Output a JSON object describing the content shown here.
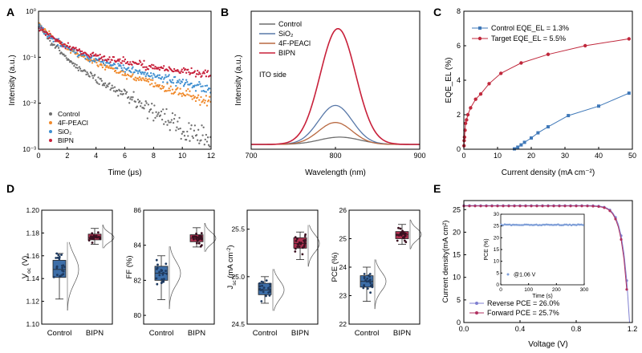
{
  "figure": {
    "panels": [
      "A",
      "B",
      "C",
      "D",
      "E"
    ]
  },
  "colors": {
    "control": "#6e6e6e",
    "fpeaci": "#f08a2c",
    "sio2": "#3f8fd0",
    "bipn": "#c8203a",
    "box_control": "#3d6ea8",
    "box_bipn": "#b03050",
    "fwd": "#b03060",
    "rev": "#7f7fd0",
    "target": "#c0283c",
    "control_eqe": "#3f78b8",
    "el_sio2": "#5878a8",
    "el_fpeaci": "#b86840"
  },
  "chart_data": [
    {
      "id": "A",
      "type": "scatter",
      "xlabel": "Time (μs)",
      "ylabel": "Intensity (a.u.)",
      "xlim": [
        0,
        12
      ],
      "ylim": [
        0.001,
        1
      ],
      "yscale": "log",
      "xticks": [
        "0",
        "2",
        "4",
        "6",
        "8",
        "10",
        "12"
      ],
      "yticks": [
        "10⁻³",
        "10⁻²",
        "10⁻¹",
        "10⁰"
      ],
      "legend_position": "bottom-left",
      "series": [
        {
          "name": "Control",
          "key": "control",
          "tau": [
            0.8,
            2.6
          ],
          "amp": [
            0.35,
            0.15
          ],
          "floor": 0.0012
        },
        {
          "name": "4F-PEACl",
          "key": "fpeaci",
          "tau": [
            1.0,
            4.2
          ],
          "amp": [
            0.35,
            0.18
          ],
          "floor": 0.0035
        },
        {
          "name": "SiO₂",
          "key": "sio2",
          "tau": [
            1.0,
            5.5
          ],
          "amp": [
            0.32,
            0.17
          ],
          "floor": 0.012
        },
        {
          "name": "BIPN",
          "key": "bipn",
          "tau": [
            1.2,
            9.0
          ],
          "amp": [
            0.3,
            0.15
          ],
          "floor": 0.04
        }
      ]
    },
    {
      "id": "B",
      "type": "line",
      "xlabel": "Wavelength (nm)",
      "ylabel": "Intensity (a.u.)",
      "xlim": [
        700,
        900
      ],
      "xticks": [
        "700",
        "800",
        "900"
      ],
      "annotation": "ITO side",
      "legend_position": "top-right",
      "series": [
        {
          "name": "Control",
          "key": "control",
          "peak": 0.06,
          "center": 805,
          "sigma": 24
        },
        {
          "name": "SiO₂",
          "key": "el_sio2",
          "peak": 0.32,
          "center": 800,
          "sigma": 20
        },
        {
          "name": "4F-PEACl",
          "key": "el_fpeaci",
          "peak": 0.18,
          "center": 800,
          "sigma": 20
        },
        {
          "name": "BIPN",
          "key": "bipn",
          "peak": 0.95,
          "center": 803,
          "sigma": 21
        }
      ]
    },
    {
      "id": "C",
      "type": "line",
      "xlabel": "Current density (mA cm⁻²)",
      "ylabel": "EQE_EL (%)",
      "xlim": [
        0,
        50
      ],
      "ylim": [
        0,
        8
      ],
      "xticks": [
        "0",
        "10",
        "20",
        "30",
        "40",
        "50"
      ],
      "yticks": [
        "0",
        "2",
        "4",
        "6",
        "8"
      ],
      "legend_position": "top-left",
      "series": [
        {
          "name": "Control EQE_EL = 1.3%",
          "key": "control_eqe",
          "x": [
            15,
            16,
            17,
            18,
            20,
            22,
            25,
            31,
            40,
            49
          ],
          "y": [
            0.02,
            0.12,
            0.25,
            0.4,
            0.65,
            0.95,
            1.3,
            1.95,
            2.5,
            3.25
          ]
        },
        {
          "name": "Target EQE_EL = 5.5%",
          "key": "target",
          "x": [
            0.05,
            0.1,
            0.2,
            0.35,
            0.5,
            0.8,
            1.2,
            2,
            3.5,
            5,
            7.5,
            11,
            17,
            25,
            36,
            49
          ],
          "y": [
            0.2,
            0.5,
            0.7,
            1.1,
            1.5,
            1.7,
            2.0,
            2.4,
            2.9,
            3.2,
            3.8,
            4.4,
            5.0,
            5.5,
            6.0,
            6.4
          ]
        }
      ]
    },
    {
      "id": "D",
      "type": "box",
      "categories": [
        "Control",
        "BIPN"
      ],
      "subplots": [
        {
          "ylabel": "V_oc (V)",
          "ylim": [
            1.1,
            1.2
          ],
          "yticks": [
            "1.10",
            "1.12",
            "1.14",
            "1.16",
            "1.18",
            "1.20"
          ],
          "control": {
            "median": 1.148,
            "q1": 1.141,
            "q3": 1.156,
            "min": 1.122,
            "max": 1.162
          },
          "bipn": {
            "median": 1.176,
            "q1": 1.174,
            "q3": 1.179,
            "min": 1.17,
            "max": 1.184
          }
        },
        {
          "ylabel": "FF (%)",
          "ylim": [
            79.5,
            86
          ],
          "yticks": [
            "80",
            "82",
            "84",
            "86"
          ],
          "control": {
            "median": 82.4,
            "q1": 82.0,
            "q3": 82.8,
            "min": 80.9,
            "max": 83.4
          },
          "bipn": {
            "median": 84.4,
            "q1": 84.2,
            "q3": 84.6,
            "min": 83.9,
            "max": 85.0
          }
        },
        {
          "ylabel": "J_sc (mA cm⁻²)",
          "ylim": [
            24.5,
            25.7
          ],
          "yticks": [
            "24.5",
            "25.0",
            "25.5"
          ],
          "control": {
            "median": 24.86,
            "q1": 24.81,
            "q3": 24.93,
            "min": 24.72,
            "max": 25.0
          },
          "bipn": {
            "median": 25.35,
            "q1": 25.3,
            "q3": 25.41,
            "min": 25.18,
            "max": 25.47
          }
        },
        {
          "ylabel": "PCE (%)",
          "ylim": [
            22,
            26
          ],
          "yticks": [
            "22",
            "23",
            "24",
            "25",
            "26"
          ],
          "control": {
            "median": 23.5,
            "q1": 23.3,
            "q3": 23.7,
            "min": 22.8,
            "max": 24.0
          },
          "bipn": {
            "median": 25.15,
            "q1": 25.0,
            "q3": 25.25,
            "min": 24.8,
            "max": 25.5
          }
        }
      ]
    },
    {
      "id": "E",
      "type": "line",
      "xlabel": "Voltage (V)",
      "ylabel": "Current density(mA cm²)",
      "xlim": [
        0,
        1.2
      ],
      "ylim": [
        0,
        27
      ],
      "xticks": [
        "0.0",
        "0.4",
        "0.8",
        "1.2"
      ],
      "yticks": [
        "0",
        "5",
        "10",
        "15",
        "20",
        "25"
      ],
      "legend_position": "bottom-left",
      "series": [
        {
          "name": "Reverse PCE = 26.0%",
          "key": "rev",
          "jsc": 25.9,
          "voc": 1.18
        },
        {
          "name": "Forward PCE = 25.7%",
          "key": "fwd",
          "jsc": 25.8,
          "voc": 1.175
        }
      ],
      "inset": {
        "xlabel": "Time (s)",
        "ylabel": "PCE (%)",
        "xlim": [
          0,
          300
        ],
        "ylim": [
          0,
          30
        ],
        "xticks": [
          "0",
          "100",
          "200",
          "300"
        ],
        "yticks": [
          "0",
          "5",
          "10",
          "15",
          "20",
          "25",
          "30"
        ],
        "value": 25.5,
        "legend": "@1.06 V"
      }
    }
  ]
}
